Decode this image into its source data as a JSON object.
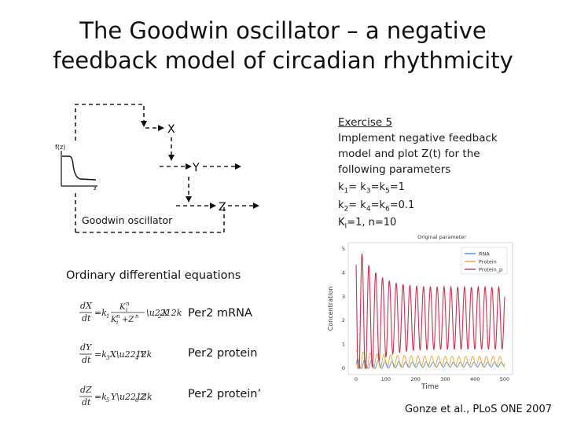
{
  "title": {
    "line1": "The Goodwin oscillator – a negative",
    "line2": "feedback model of circadian rhythmicity"
  },
  "diagram": {
    "nodes": {
      "x": "X",
      "y": "Y",
      "z": "Z"
    },
    "inset": {
      "ylabel": "f(z)",
      "xlabel": "z"
    },
    "caption": "Goodwin oscillator"
  },
  "exercise": {
    "title": "Exercise 5",
    "line1": "Implement negative feedback",
    "line2": "model and plot Z(t) for  the",
    "line3": "following parameters",
    "params": {
      "p1": {
        "a": "k",
        "a_sub": "1",
        "b": "= k",
        "b_sub": "3",
        "c": "=k",
        "c_sub": "5",
        "d": "=1"
      },
      "p2": {
        "a": "k",
        "a_sub": "2",
        "b": "= k",
        "b_sub": "4",
        "c": "=k",
        "c_sub": "6",
        "d": "=0.1"
      },
      "p3": {
        "a": "K",
        "a_sub": "I",
        "b": "=1, n=10"
      }
    }
  },
  "equations": {
    "heading": "Ordinary differential equations",
    "eq1": {
      "label": "Per2 mRNA",
      "lhs_num": "dX",
      "lhs_den": "dt"
    },
    "eq2": {
      "label": "Per2 protein",
      "lhs_num": "dY",
      "lhs_den": "dt"
    },
    "eq3": {
      "label": "Per2 protein’",
      "lhs_num": "dZ",
      "lhs_den": "dt"
    }
  },
  "chart_data": {
    "type": "line",
    "title": "Original parameter",
    "xlabel": "Time",
    "ylabel": "Concentration",
    "xlim": [
      0,
      500
    ],
    "ylim": [
      0,
      5
    ],
    "x_ticks": [
      "0",
      "100",
      "200",
      "300",
      "400",
      "500"
    ],
    "y_ticks": [
      "0",
      "1",
      "2",
      "3",
      "4",
      "5"
    ],
    "legend_position": "top-right",
    "series": [
      {
        "name": "RNA",
        "color": "#4a90d9",
        "approx_mean": 0.15,
        "approx_amplitude": 0.1
      },
      {
        "name": "Protein",
        "color": "#e8a33a",
        "approx_mean": 0.3,
        "approx_amplitude": 0.2
      },
      {
        "name": "Protein_p",
        "color": "#c8324f",
        "approx_mean": 2.1,
        "approx_amplitude": 1.3
      }
    ]
  },
  "citation": {
    "text": "Gonze et al., PLoS ONE 2007"
  },
  "colors": {
    "red_series": "#c8324f",
    "blue_series": "#4a90d9",
    "orange_series": "#e8a33a"
  }
}
